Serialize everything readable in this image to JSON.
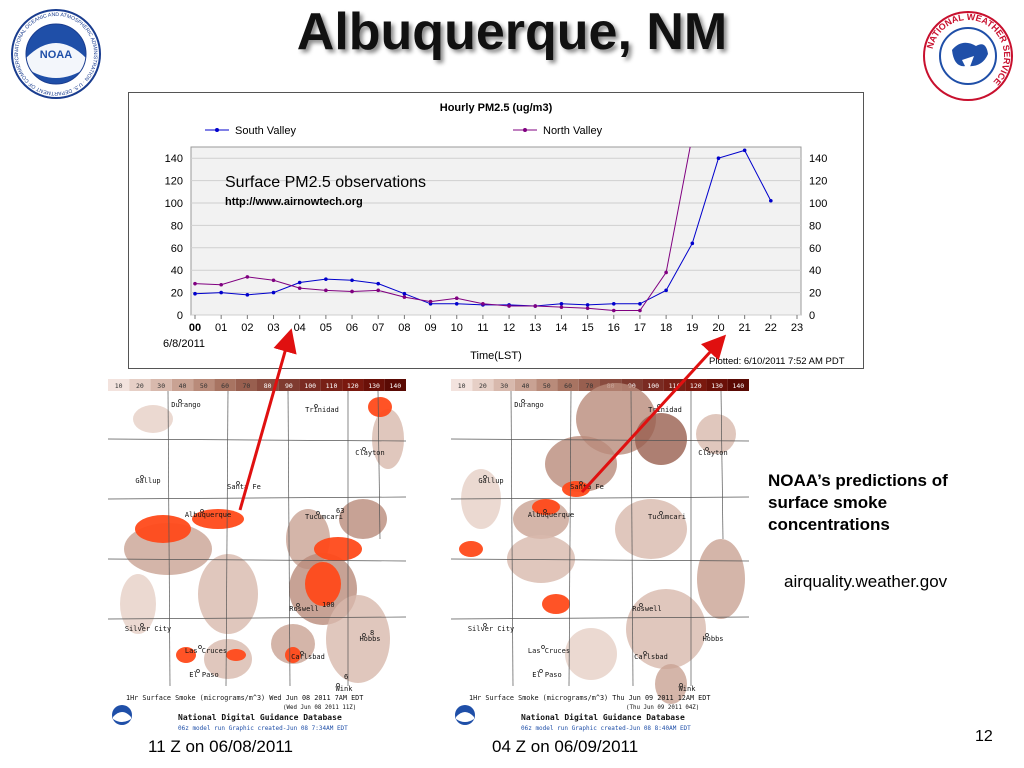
{
  "slide": {
    "title": "Albuquerque, NM",
    "note_bold": "NOAA’s predictions of surface smoke concentrations",
    "note_url": "airquality.weather.gov",
    "page_number": "12"
  },
  "logos": {
    "noaa": {
      "center_text": "NOAA",
      "ring_text": "NATIONAL OCEANIC AND ATMOSPHERIC ADMINISTRATION · U.S. DEPARTMENT OF COMMERCE"
    },
    "nws": {
      "ring_text": "NATIONAL WEATHER SERVICE"
    }
  },
  "chart_data": {
    "type": "line",
    "title": "Hourly PM2.5 (ug/m3)",
    "xlabel": "Time(LST)",
    "date_label": "6/8/2011",
    "plotted_label": "Plotted: 6/10/2011 7:52 AM PDT",
    "annotation_title": "Surface PM2.5 observations",
    "annotation_url": "http://www.airnowtech.org",
    "categories": [
      "00",
      "01",
      "02",
      "03",
      "04",
      "05",
      "06",
      "07",
      "08",
      "09",
      "10",
      "11",
      "12",
      "13",
      "14",
      "15",
      "16",
      "17",
      "18",
      "19",
      "20",
      "21",
      "22",
      "23"
    ],
    "ylim": [
      0,
      150
    ],
    "yticks": [
      0,
      20,
      40,
      60,
      80,
      100,
      120,
      140
    ],
    "grid": true,
    "legend_position": "top",
    "series": [
      {
        "name": "South Valley",
        "color": "#0000cc",
        "values": [
          19,
          20,
          18,
          20,
          29,
          32,
          31,
          28,
          19,
          10,
          10,
          9,
          9,
          8,
          10,
          9,
          10,
          10,
          22,
          64,
          140,
          147,
          102,
          null
        ]
      },
      {
        "name": "North Valley",
        "color": "#800080",
        "values": [
          28,
          27,
          34,
          31,
          24,
          22,
          21,
          22,
          16,
          12,
          15,
          10,
          8,
          8,
          7,
          6,
          4,
          4,
          38,
          160,
          null,
          null,
          null,
          null
        ]
      }
    ]
  },
  "maps": [
    {
      "caption": "11 Z on 06/08/2011",
      "scale_labels": [
        "10",
        "20",
        "30",
        "40",
        "50",
        "60",
        "70",
        "80",
        "90",
        "100",
        "110",
        "120",
        "130",
        "140"
      ],
      "line1": "1Hr Surface Smoke (micrograms/m^3) Wed Jun 08 2011  7AM EDT",
      "line2": "(Wed Jun 08 2011 11Z)",
      "line3": "National Digital Guidance Database",
      "line4": "06z model run    Graphic created-Jun 08  7:34AM EDT",
      "cities": [
        "Durango",
        "Trinidad",
        "Clayton",
        "Gallup",
        "Santa Fe",
        "Albuquerque",
        "Tucumcari",
        "Roswell",
        "Silver City",
        "Las Cruces",
        "El Paso",
        "Carlsbad",
        "Hobbs",
        "Wink"
      ],
      "values": [
        "63",
        "100",
        "8",
        "6"
      ]
    },
    {
      "caption": "04 Z on 06/09/2011",
      "scale_labels": [
        "10",
        "20",
        "30",
        "40",
        "50",
        "60",
        "70",
        "80",
        "90",
        "100",
        "110",
        "120",
        "130",
        "140"
      ],
      "line1": "1Hr Surface Smoke (micrograms/m^3) Thu Jun 09 2011 12AM EDT",
      "line2": "(Thu Jun 09 2011 04Z)",
      "line3": "National Digital Guidance Database",
      "line4": "06z model run    Graphic created-Jun 08  8:40AM EDT",
      "cities": [
        "Durango",
        "Trinidad",
        "Clayton",
        "Gallup",
        "Santa Fe",
        "Albuquerque",
        "Tucumcari",
        "Roswell",
        "Silver City",
        "Las Cruces",
        "El Paso",
        "Carlsbad",
        "Hobbs",
        "Wink"
      ]
    }
  ]
}
